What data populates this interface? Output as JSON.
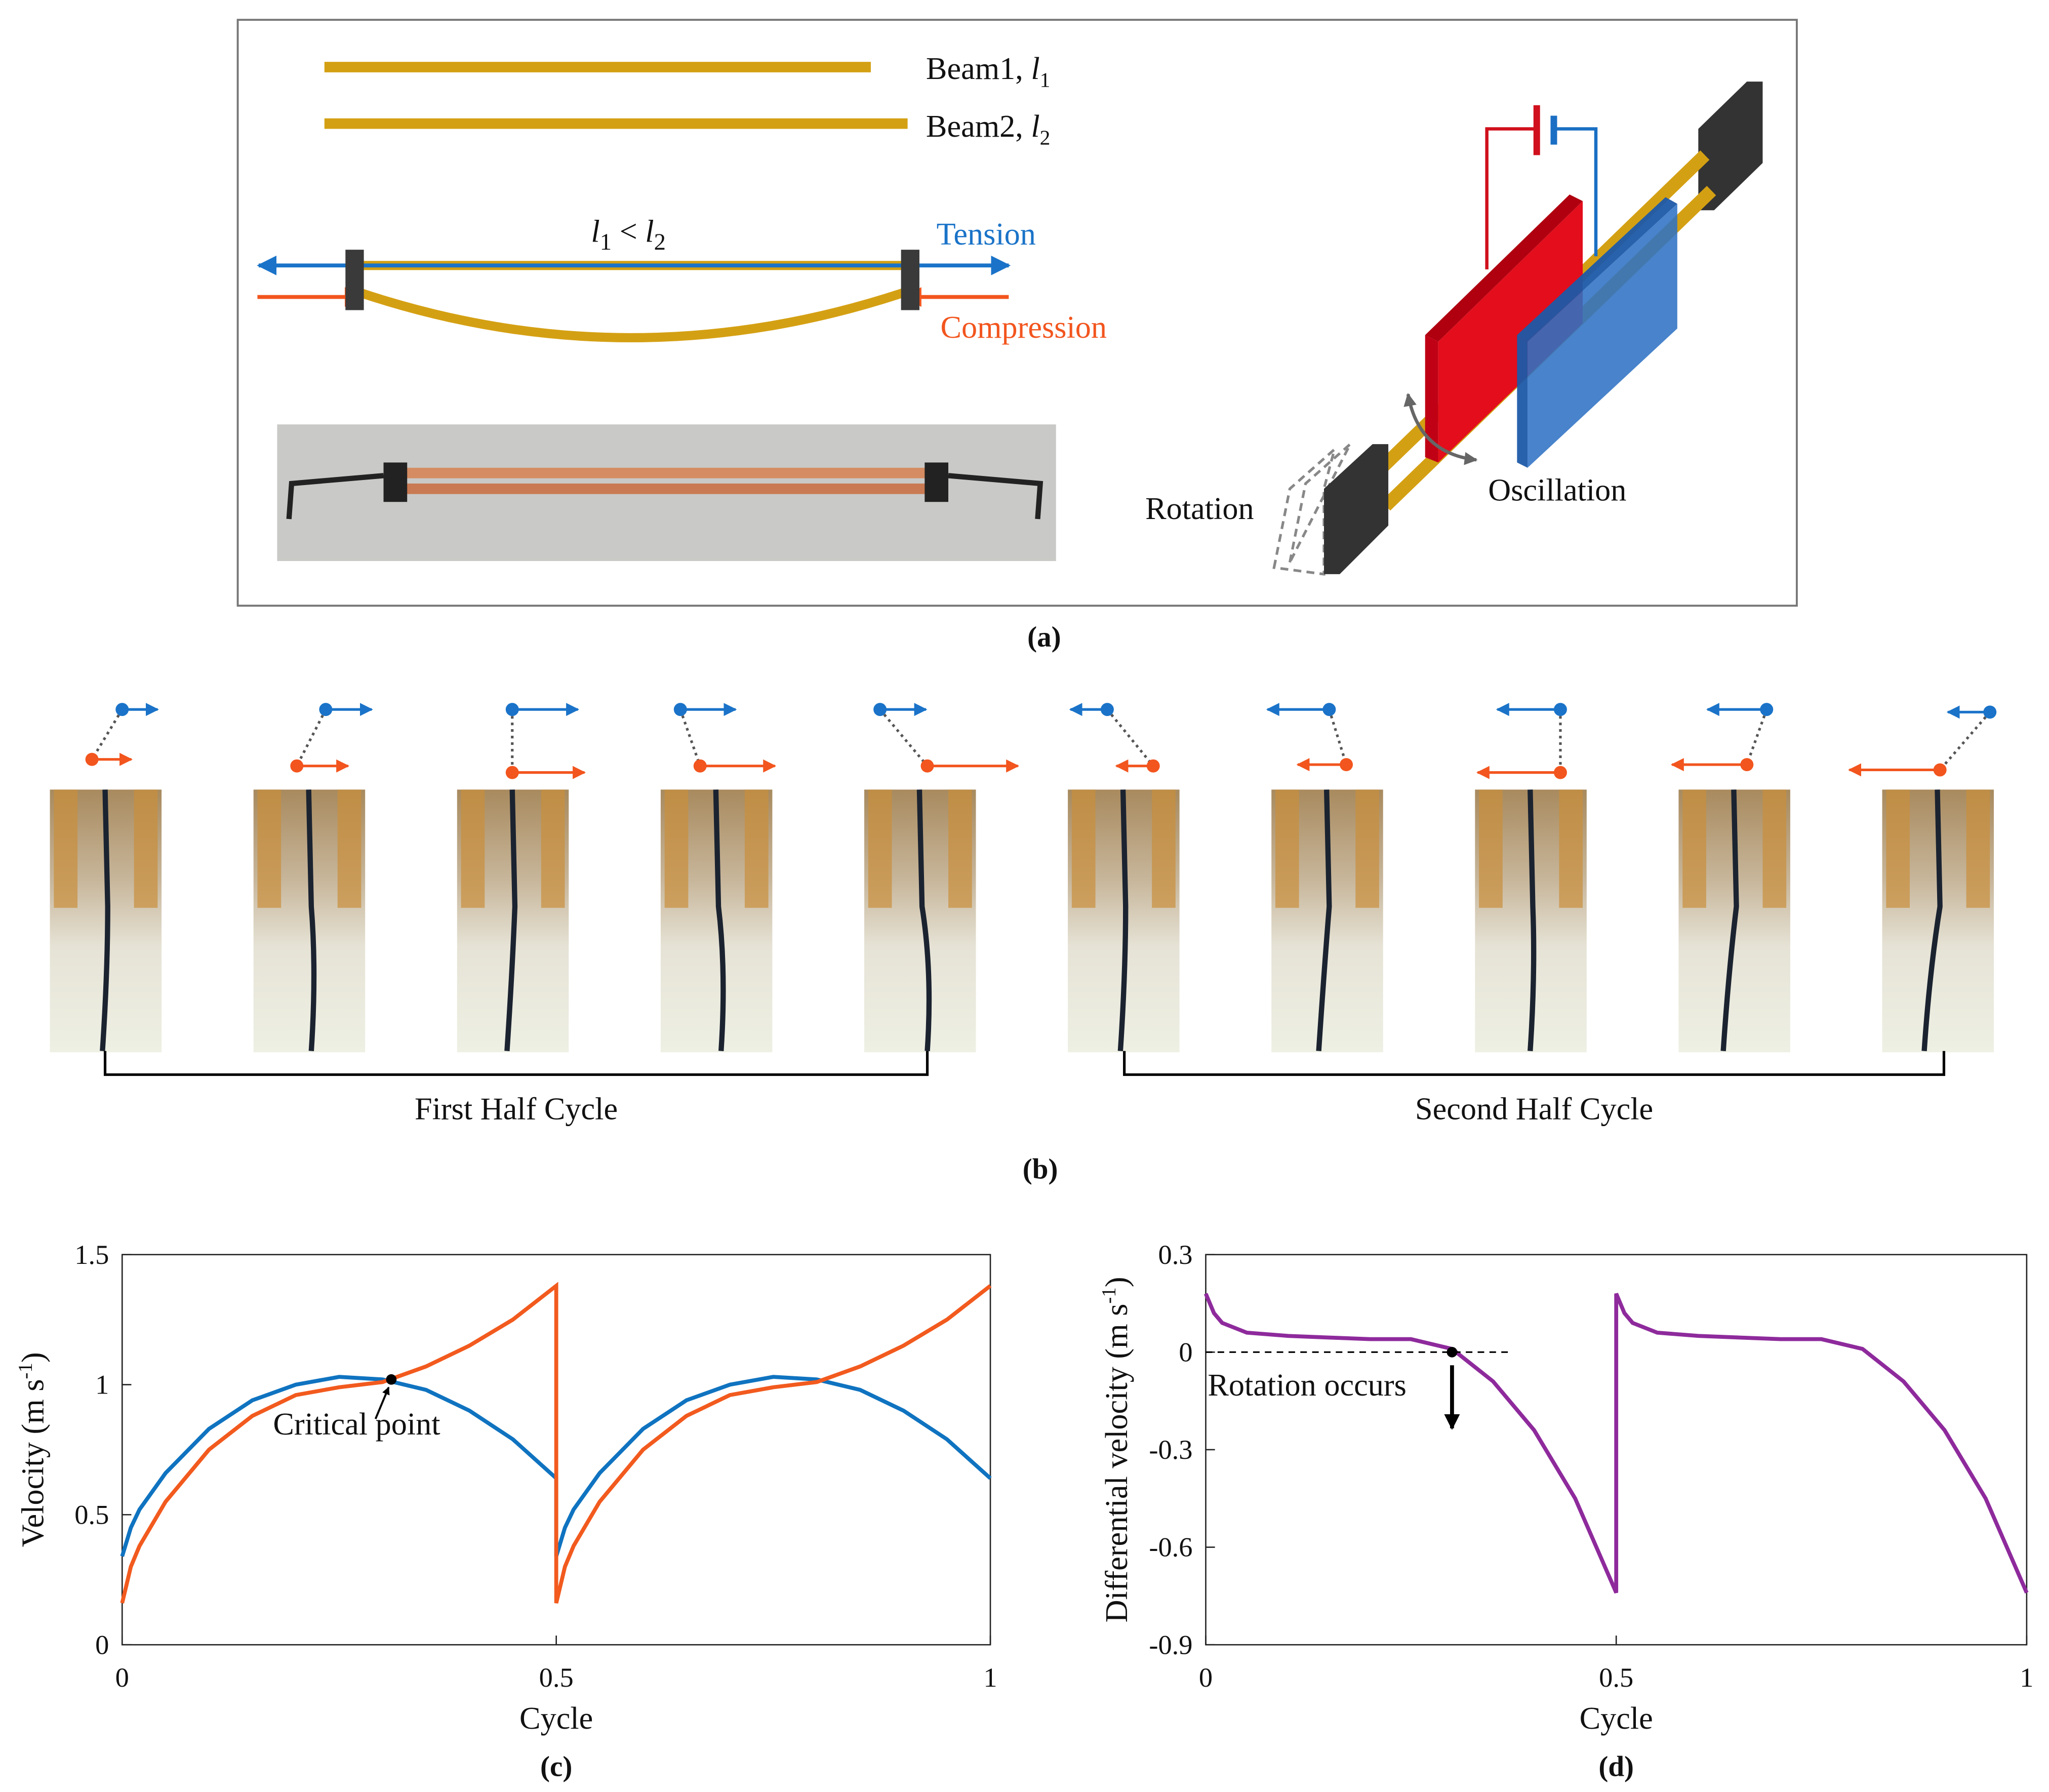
{
  "panel_a": {
    "beam1": {
      "text": "Beam1,",
      "var": "l",
      "sub": "1"
    },
    "beam2": {
      "text": "Beam2,",
      "var": "l",
      "sub": "2"
    },
    "relation": {
      "left_var": "l",
      "left_sub": "1",
      "op": "<",
      "right_var": "l",
      "right_sub": "2"
    },
    "tension": "Tension",
    "compression": "Compression",
    "rotation": "Rotation",
    "oscillation": "Oscillation",
    "caption": "(a)"
  },
  "panel_b": {
    "first_half": "First Half Cycle",
    "second_half": "Second Half Cycle",
    "caption": "(b)"
  },
  "chart_data": [
    {
      "type": "line",
      "caption": "(c)",
      "xlabel": "Cycle",
      "ylabel": {
        "text": "Velocity  (m s",
        "sup": "-1",
        "end": ")"
      },
      "x": [
        0,
        0.01,
        0.02,
        0.05,
        0.1,
        0.15,
        0.2,
        0.25,
        0.3,
        0.35,
        0.4,
        0.45,
        0.5,
        0.5,
        0.51,
        0.52,
        0.55,
        0.6,
        0.65,
        0.7,
        0.75,
        0.8,
        0.85,
        0.9,
        0.95,
        1.0
      ],
      "series": [
        {
          "name": null,
          "color": "#0f73c0",
          "values": [
            0.34,
            0.45,
            0.52,
            0.66,
            0.83,
            0.94,
            1.0,
            1.03,
            1.02,
            0.98,
            0.9,
            0.79,
            0.64,
            0.34,
            0.45,
            0.52,
            0.66,
            0.83,
            0.94,
            1.0,
            1.03,
            1.02,
            0.98,
            0.9,
            0.79,
            0.64
          ]
        },
        {
          "name": null,
          "color": "#f25a1e",
          "values": [
            0.16,
            0.3,
            0.38,
            0.55,
            0.75,
            0.88,
            0.96,
            0.99,
            1.01,
            1.07,
            1.15,
            1.25,
            1.38,
            0.16,
            0.3,
            0.38,
            0.55,
            0.75,
            0.88,
            0.96,
            0.99,
            1.01,
            1.07,
            1.15,
            1.25,
            1.38
          ]
        }
      ],
      "annotation": {
        "text": "Critical point",
        "x": 0.31,
        "y": 1.02
      },
      "xlim": [
        0,
        1
      ],
      "xticks": [
        0,
        0.5,
        1
      ],
      "ylim": [
        0,
        1.5
      ],
      "yticks": [
        0,
        0.5,
        1,
        1.5
      ]
    },
    {
      "type": "line",
      "caption": "(d)",
      "xlabel": "Cycle",
      "ylabel": {
        "text": "Differential  velocity  (m s",
        "sup": "-1",
        "end": ")"
      },
      "x": [
        0,
        0.01,
        0.02,
        0.05,
        0.1,
        0.15,
        0.2,
        0.25,
        0.3,
        0.35,
        0.4,
        0.45,
        0.5,
        0.5,
        0.51,
        0.52,
        0.55,
        0.6,
        0.65,
        0.7,
        0.75,
        0.8,
        0.85,
        0.9,
        0.95,
        1.0
      ],
      "series": [
        {
          "name": null,
          "color": "#8e2a9c",
          "values": [
            0.18,
            0.12,
            0.09,
            0.06,
            0.05,
            0.045,
            0.04,
            0.04,
            0.01,
            -0.09,
            -0.24,
            -0.45,
            -0.74,
            0.18,
            0.12,
            0.09,
            0.06,
            0.05,
            0.045,
            0.04,
            0.04,
            0.01,
            -0.09,
            -0.24,
            -0.45,
            -0.74
          ]
        }
      ],
      "annotation": {
        "text": "Rotation occurs",
        "x": 0.3,
        "y": 0
      },
      "reference_line": {
        "y": 0,
        "x": [
          0,
          0.37
        ]
      },
      "xlim": [
        0,
        1
      ],
      "xticks": [
        0,
        0.5,
        1
      ],
      "ylim": [
        -0.9,
        0.3
      ],
      "yticks": [
        -0.9,
        -0.6,
        -0.3,
        0,
        0.3
      ]
    }
  ]
}
